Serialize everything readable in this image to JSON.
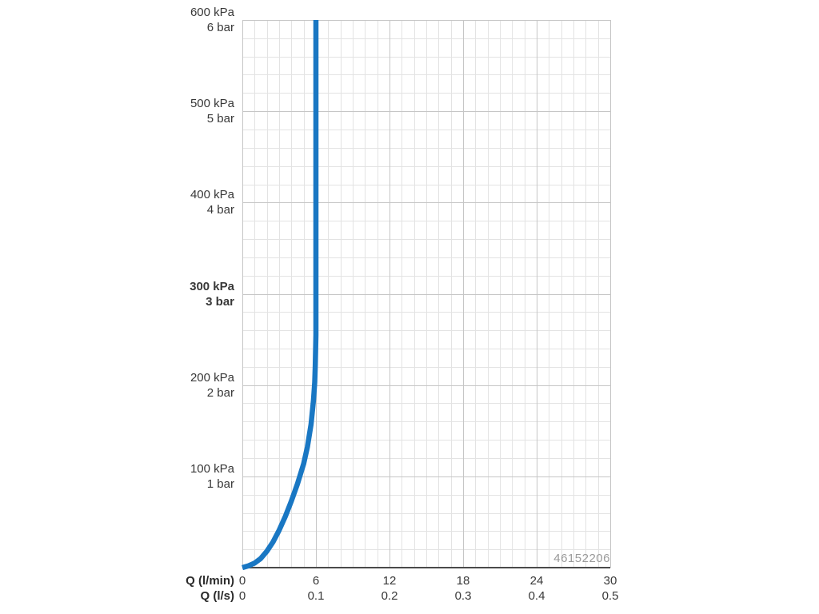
{
  "chart_data": {
    "type": "line",
    "title": "",
    "xlabel_primary": "Q (l/min)",
    "xlabel_secondary": "Q (l/s)",
    "xlim": [
      0,
      30
    ],
    "ylim": [
      0,
      600
    ],
    "x_major_step": 6,
    "x_minor_step": 1,
    "y_major_step": 100,
    "y_minor_step": 20,
    "grid": true,
    "legend": "none",
    "y_ticks": [
      {
        "value": 600,
        "kpa": "600 kPa",
        "bar": "6 bar",
        "bold": false
      },
      {
        "value": 500,
        "kpa": "500 kPa",
        "bar": "5 bar",
        "bold": false
      },
      {
        "value": 400,
        "kpa": "400 kPa",
        "bar": "4 bar",
        "bold": false
      },
      {
        "value": 300,
        "kpa": "300 kPa",
        "bar": "3 bar",
        "bold": true
      },
      {
        "value": 200,
        "kpa": "200 kPa",
        "bar": "2 bar",
        "bold": false
      },
      {
        "value": 100,
        "kpa": "100 kPa",
        "bar": "1 bar",
        "bold": false
      }
    ],
    "x_ticks": [
      {
        "value": 0,
        "lmin": "0",
        "ls": "0"
      },
      {
        "value": 6,
        "lmin": "6",
        "ls": "0.1"
      },
      {
        "value": 12,
        "lmin": "12",
        "ls": "0.2"
      },
      {
        "value": 18,
        "lmin": "18",
        "ls": "0.3"
      },
      {
        "value": 24,
        "lmin": "24",
        "ls": "0.4"
      },
      {
        "value": 30,
        "lmin": "30",
        "ls": "0.5"
      }
    ],
    "series": [
      {
        "name": "pressure-flow-curve",
        "color": "#1977c3",
        "stroke_width": 6.5,
        "points": [
          [
            0,
            0
          ],
          [
            0.5,
            2
          ],
          [
            1,
            5
          ],
          [
            1.5,
            10
          ],
          [
            2,
            18
          ],
          [
            2.5,
            28
          ],
          [
            3,
            41
          ],
          [
            3.5,
            56
          ],
          [
            4,
            73
          ],
          [
            4.5,
            92
          ],
          [
            5,
            114
          ],
          [
            5.3,
            132
          ],
          [
            5.6,
            157
          ],
          [
            5.8,
            183
          ],
          [
            5.9,
            203
          ],
          [
            5.95,
            222
          ],
          [
            6,
            255
          ],
          [
            6,
            600
          ]
        ]
      }
    ],
    "watermark": "46152206"
  },
  "colors": {
    "background": "#ffffff",
    "grid_minor": "#e3e3e3",
    "grid_major": "#c6c6c6",
    "axis": "#4a4a4a",
    "text": "#383838",
    "curve": "#1977c3",
    "watermark": "#9a9a9a"
  }
}
